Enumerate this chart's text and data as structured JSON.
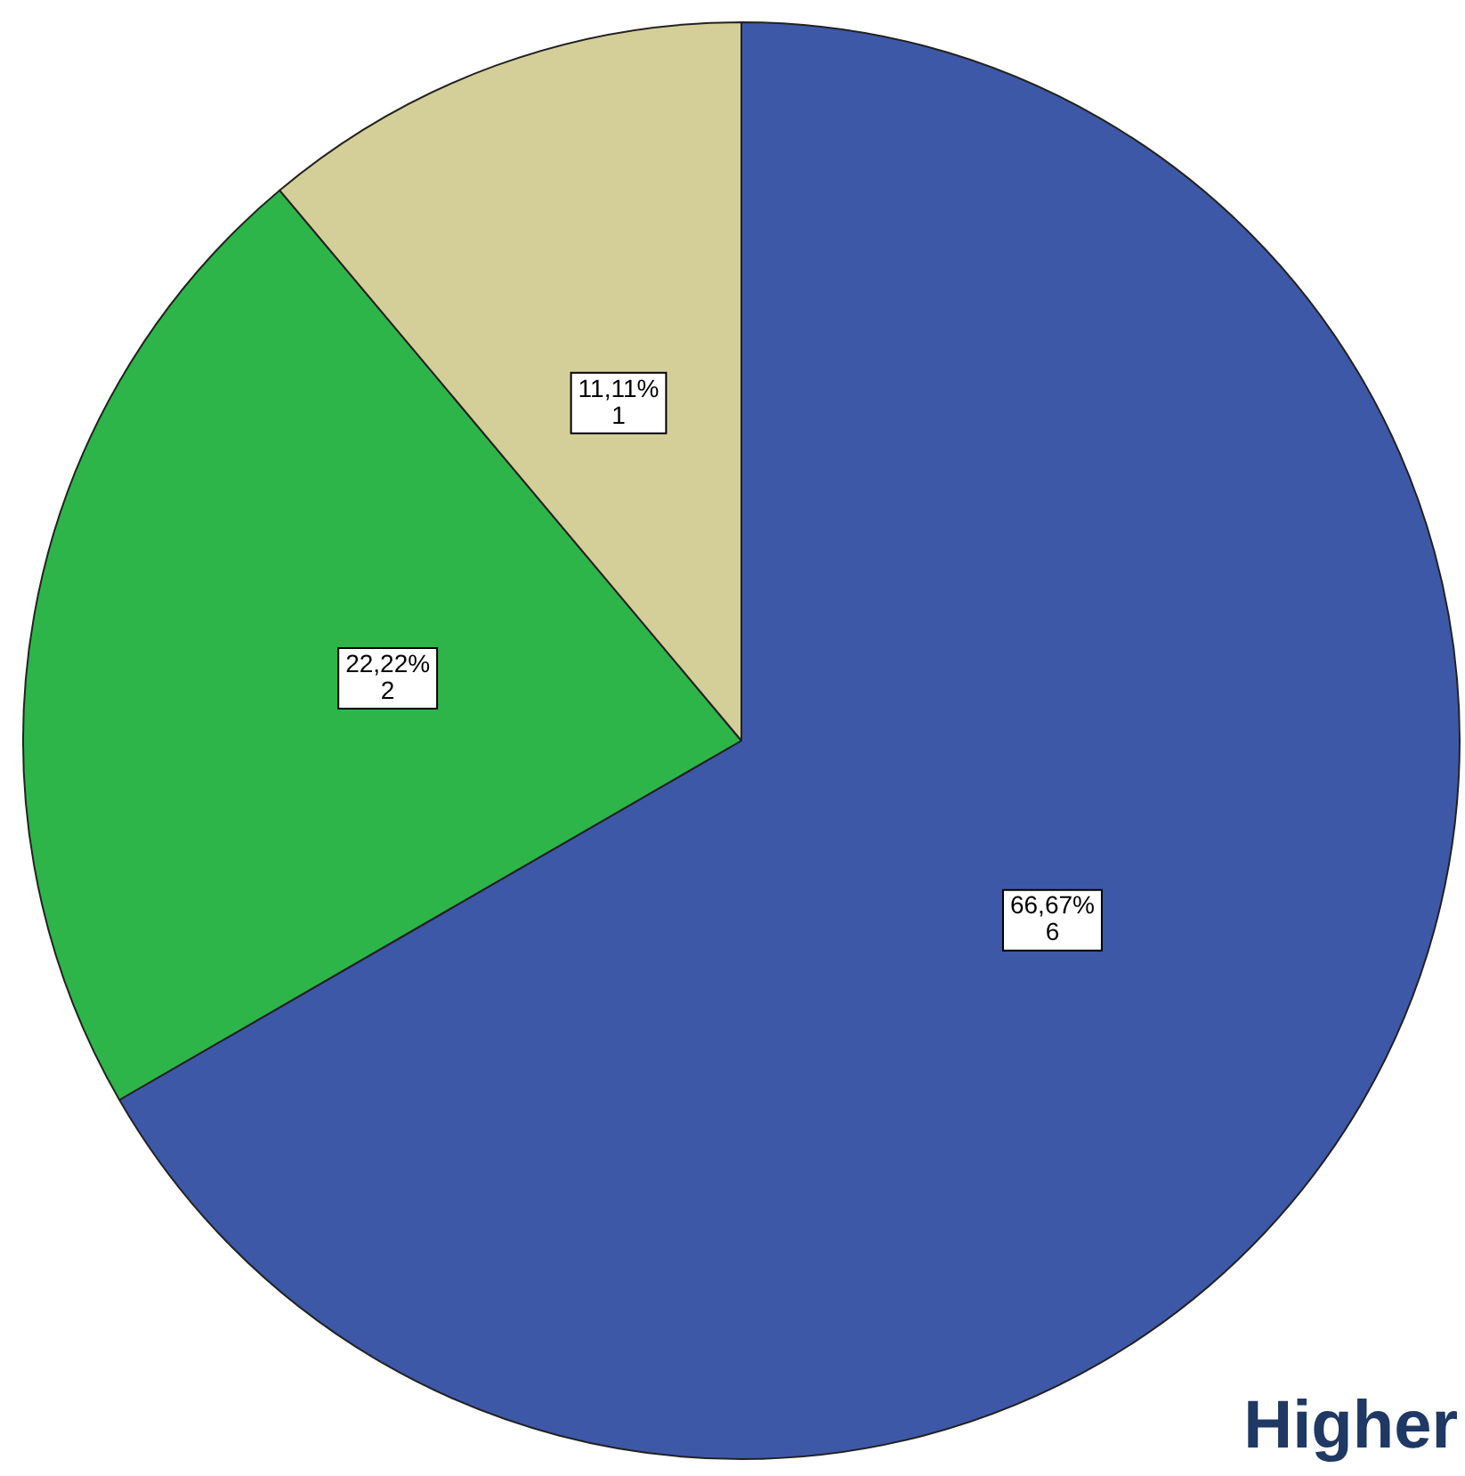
{
  "chart_data": {
    "type": "pie",
    "categories": [
      null,
      null,
      null
    ],
    "values": [
      6,
      2,
      1
    ],
    "colors": [
      "#3e58a8",
      "#2db54a",
      "#d4cf98"
    ],
    "value_labels": [
      "66,67%\n6",
      "22,22%\n2",
      "11,11%\n1"
    ],
    "annotations": [
      "Higher"
    ]
  }
}
